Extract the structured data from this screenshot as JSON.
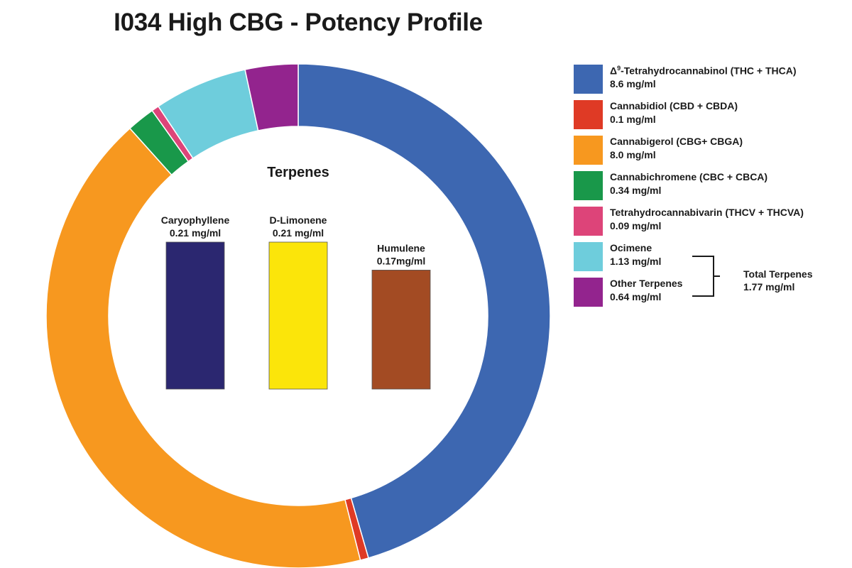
{
  "title": "I034 High CBG - Potency Profile",
  "chart_data": [
    {
      "type": "pie",
      "variant": "donut",
      "unit": "mg/ml",
      "start_angle": "12 o'clock",
      "direction": "clockwise",
      "slices": [
        {
          "label": "Δ9-Tetrahydrocannabinol (THC + THCA)",
          "value": 8.6,
          "color": "#3d67b1"
        },
        {
          "label": "Cannabidiol (CBD + CBDA)",
          "value": 0.1,
          "color": "#df3a25"
        },
        {
          "label": "Cannabigerol (CBG+ CBGA)",
          "value": 8.0,
          "color": "#f7981f"
        },
        {
          "label": "Cannabichromene (CBC + CBCA)",
          "value": 0.34,
          "color": "#19984a"
        },
        {
          "label": "Tetrahydrocannabivarin (THCV + THCVA)",
          "value": 0.09,
          "color": "#dd4479"
        },
        {
          "label": "Ocimene",
          "value": 1.13,
          "color": "#6ecddc"
        },
        {
          "label": "Other Terpenes",
          "value": 0.64,
          "color": "#93248e"
        }
      ]
    },
    {
      "type": "bar",
      "title": "Terpenes",
      "unit": "mg/ml",
      "categories": [
        "Caryophyllene",
        "D-Limonene",
        "Humulene"
      ],
      "values": [
        0.21,
        0.21,
        0.17
      ],
      "value_labels": [
        "0.21 mg/ml",
        "0.21 mg/ml",
        "0.17mg/ml"
      ],
      "colors": [
        "#2b2770",
        "#fbe50a",
        "#a34b23"
      ],
      "ylim": [
        0,
        0.21
      ],
      "axes_visible": false
    }
  ],
  "legend": [
    {
      "name_prefix": "Δ",
      "name_sup": "9",
      "name": "-Tetrahydrocannabinol (THC + THCA)",
      "value": "8.6 mg/ml",
      "color": "#3d67b1"
    },
    {
      "name_prefix": "",
      "name_sup": "",
      "name": "Cannabidiol (CBD + CBDA)",
      "value": "0.1 mg/ml",
      "color": "#df3a25"
    },
    {
      "name_prefix": "",
      "name_sup": "",
      "name": "Cannabigerol (CBG+ CBGA)",
      "value": "8.0 mg/ml",
      "color": "#f7981f"
    },
    {
      "name_prefix": "",
      "name_sup": "",
      "name": "Cannabichromene (CBC + CBCA)",
      "value": "0.34 mg/ml",
      "color": "#19984a"
    },
    {
      "name_prefix": "",
      "name_sup": "",
      "name": "Tetrahydrocannabivarin (THCV + THCVA)",
      "value": "0.09 mg/ml",
      "color": "#dd4479"
    },
    {
      "name_prefix": "",
      "name_sup": "",
      "name": "Ocimene",
      "value": "1.13 mg/ml",
      "color": "#6ecddc"
    },
    {
      "name_prefix": "",
      "name_sup": "",
      "name": "Other Terpenes",
      "value": "0.64 mg/ml",
      "color": "#93248e"
    }
  ],
  "total_terpenes": {
    "label": "Total Terpenes",
    "value": "1.77 mg/ml"
  }
}
